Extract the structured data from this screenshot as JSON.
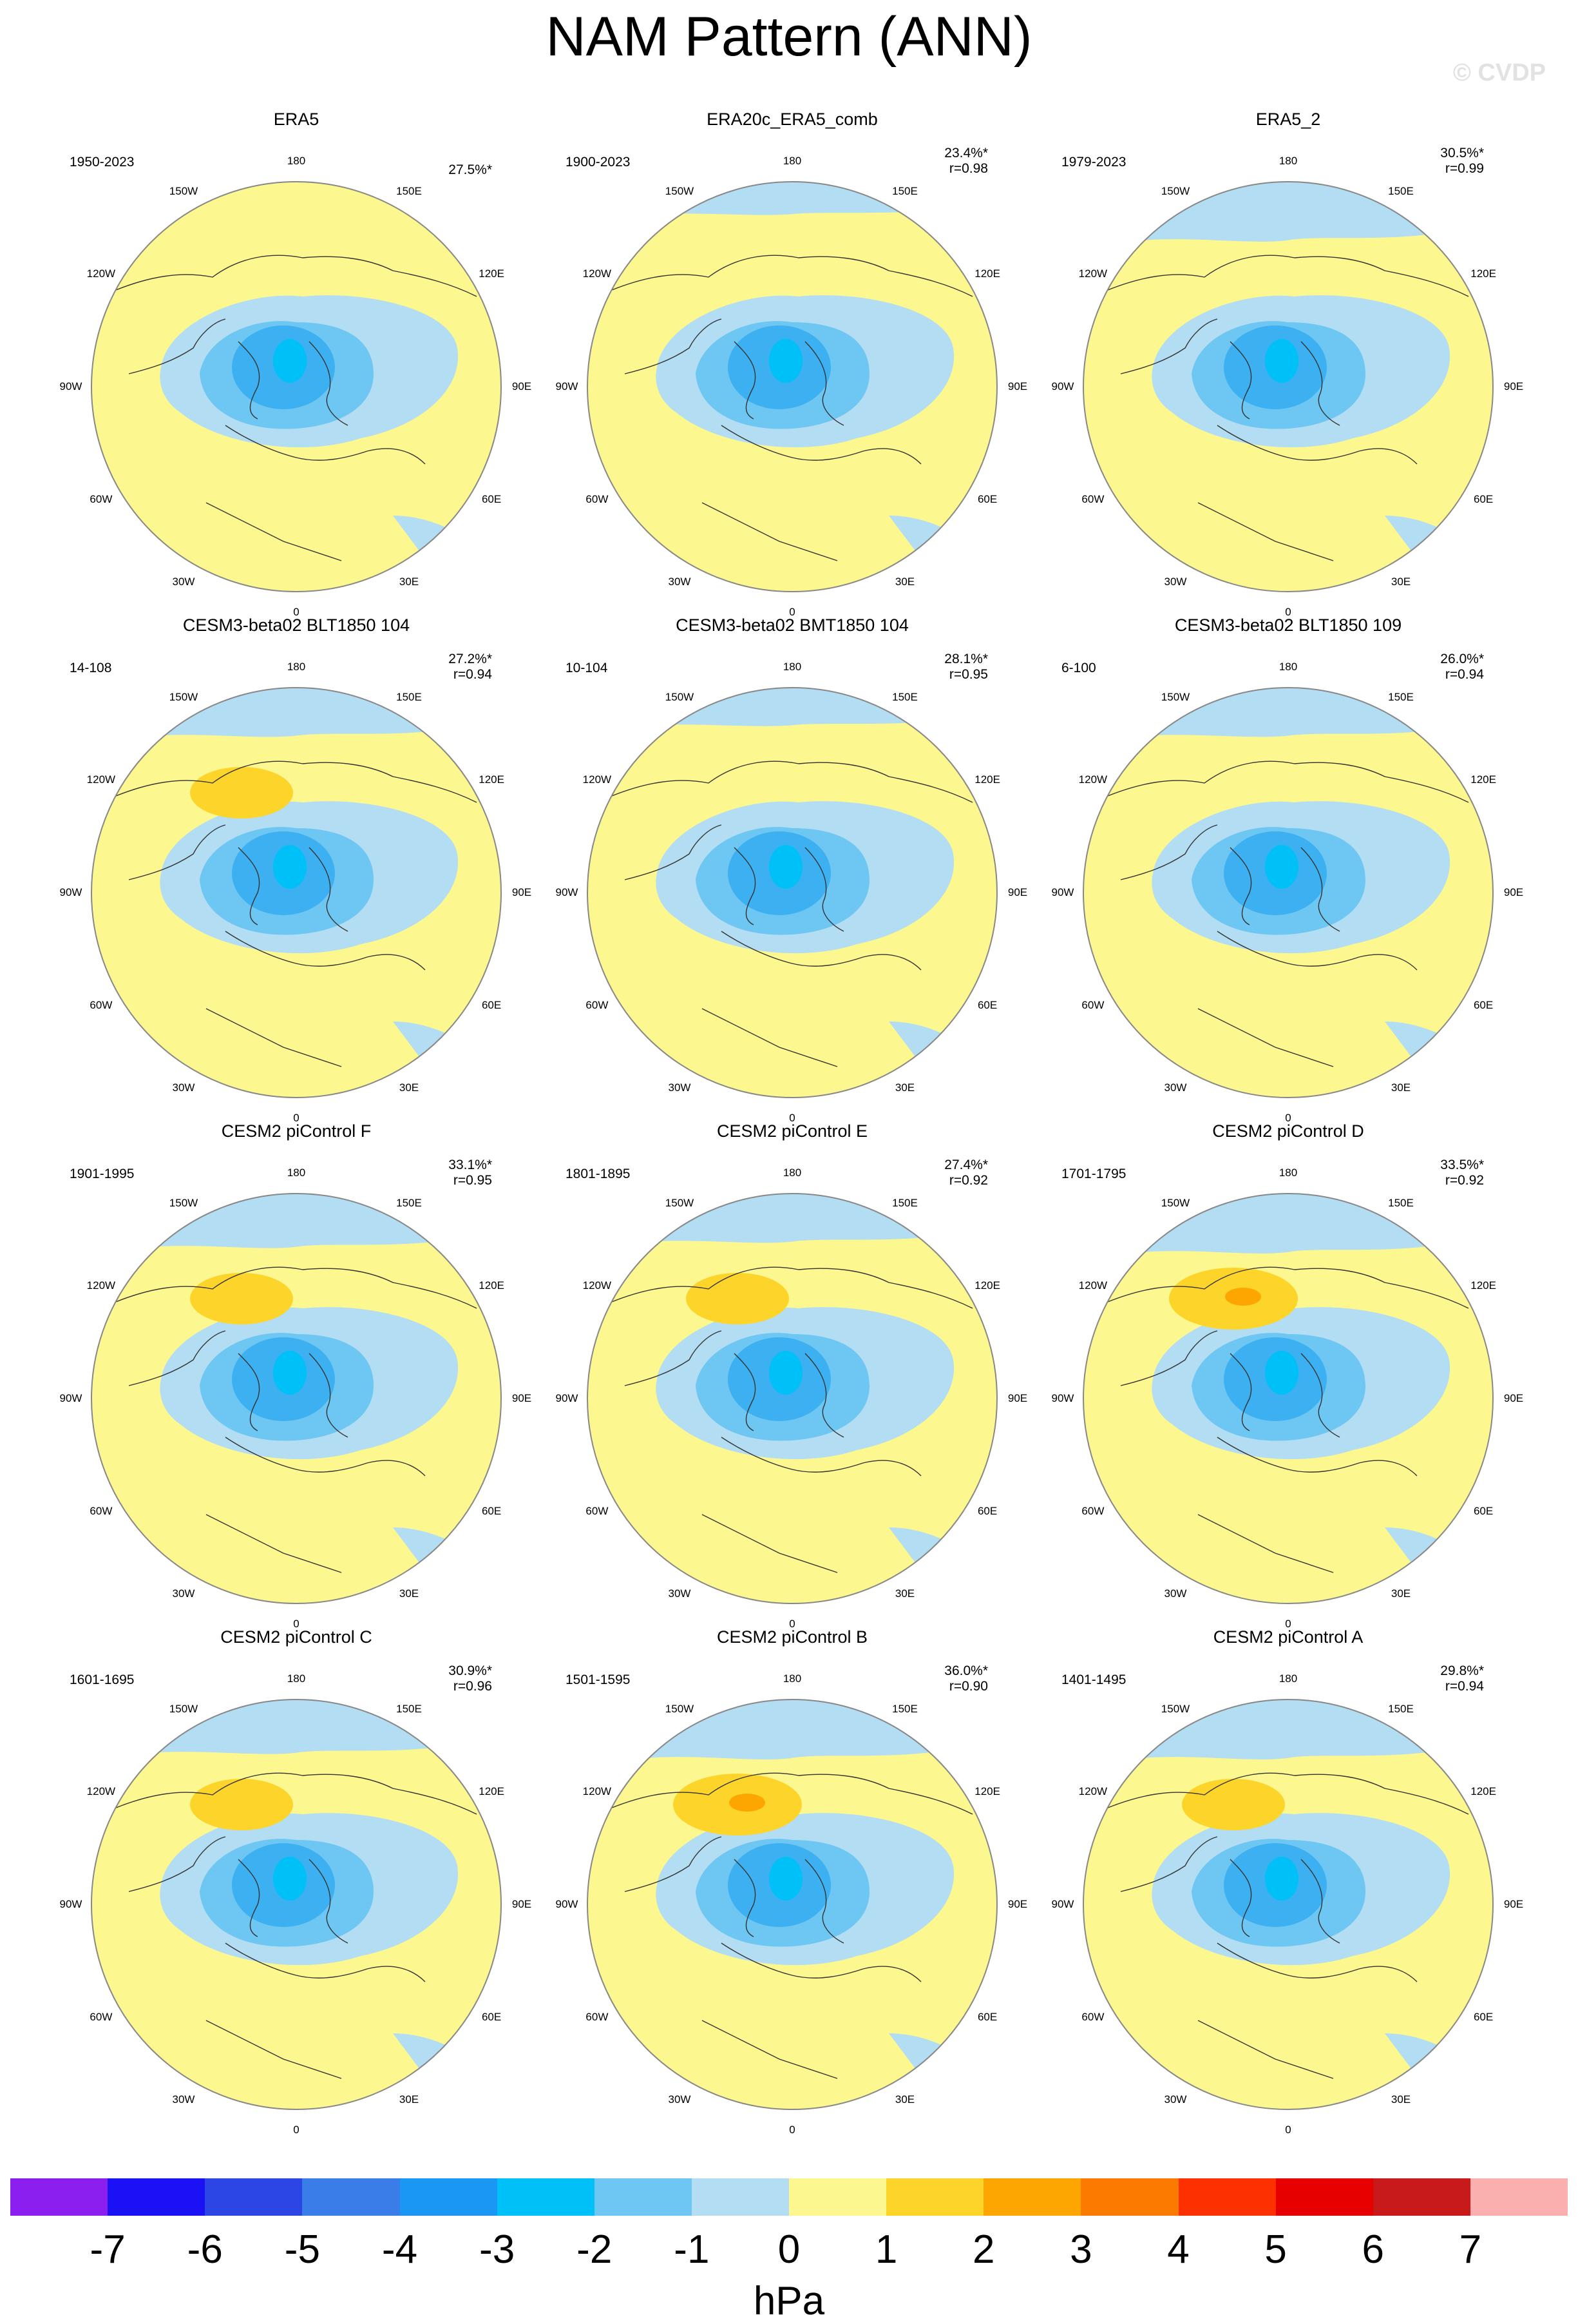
{
  "title": "NAM Pattern (ANN)",
  "watermark": "© CVDP",
  "colors": {
    "ocean_border": "#888888",
    "land_line": "#333333"
  },
  "lon_labels": [
    "180",
    "150E",
    "120E",
    "90E",
    "60E",
    "30E",
    "0",
    "30W",
    "60W",
    "90W",
    "120W",
    "150W"
  ],
  "panels": [
    {
      "title": "ERA5",
      "period": "1950-2023",
      "pct": "27.5%*",
      "r": "",
      "pos": 0.0,
      "maxneg": -3,
      "high": 0
    },
    {
      "title": "ERA20c_ERA5_comb",
      "period": "1900-2023",
      "pct": "23.4%*",
      "r": "r=0.98",
      "pos": 0.1,
      "maxneg": -3,
      "high": 0
    },
    {
      "title": "ERA5_2",
      "period": "1979-2023",
      "pct": "30.5%*",
      "r": "r=0.99",
      "pos": 0.35,
      "maxneg": -3,
      "high": 0
    },
    {
      "title": "CESM3-beta02 BLT1850 104",
      "period": "14-108",
      "pct": "27.2%*",
      "r": "r=0.94",
      "pos": 0.25,
      "maxneg": -3,
      "high": 1
    },
    {
      "title": "CESM3-beta02 BMT1850 104",
      "period": "10-104",
      "pct": "28.1%*",
      "r": "r=0.95",
      "pos": 0.15,
      "maxneg": -3,
      "high": 0
    },
    {
      "title": "CESM3-beta02 BLT1850 109",
      "period": "6-100",
      "pct": "26.0%*",
      "r": "r=0.94",
      "pos": 0.25,
      "maxneg": -3,
      "high": 0
    },
    {
      "title": "CESM2 piControl F",
      "period": "1901-1995",
      "pct": "33.1%*",
      "r": "r=0.95",
      "pos": 0.3,
      "maxneg": -3,
      "high": 1
    },
    {
      "title": "CESM2 piControl E",
      "period": "1801-1895",
      "pct": "27.4%*",
      "r": "r=0.92",
      "pos": 0.25,
      "maxneg": -3,
      "high": 1
    },
    {
      "title": "CESM2 piControl D",
      "period": "1701-1795",
      "pct": "33.5%*",
      "r": "r=0.92",
      "pos": 0.35,
      "maxneg": -3,
      "high": 2
    },
    {
      "title": "CESM2 piControl C",
      "period": "1601-1695",
      "pct": "30.9%*",
      "r": "r=0.96",
      "pos": 0.3,
      "maxneg": -3,
      "high": 1
    },
    {
      "title": "CESM2 piControl B",
      "period": "1501-1595",
      "pct": "36.0%*",
      "r": "r=0.90",
      "pos": 0.35,
      "maxneg": -3,
      "high": 2
    },
    {
      "title": "CESM2 piControl A",
      "period": "1401-1495",
      "pct": "29.8%*",
      "r": "r=0.94",
      "pos": 0.35,
      "maxneg": -3,
      "high": 1
    }
  ],
  "colorbar": {
    "colors": [
      "#8a1ff0",
      "#1a12f5",
      "#2c46e6",
      "#3a7de8",
      "#1a96f5",
      "#00c0f8",
      "#6ec6f2",
      "#b3ddf2",
      "#fdf78f",
      "#fdd42a",
      "#fda500",
      "#fd7a00",
      "#fd3000",
      "#e60000",
      "#c81a1a",
      "#fbb0b0"
    ],
    "labels": [
      "-7",
      "-6",
      "-5",
      "-4",
      "-3",
      "-2",
      "-1",
      "0",
      "1",
      "2",
      "3",
      "4",
      "5",
      "6",
      "7"
    ],
    "units": "hPa"
  }
}
